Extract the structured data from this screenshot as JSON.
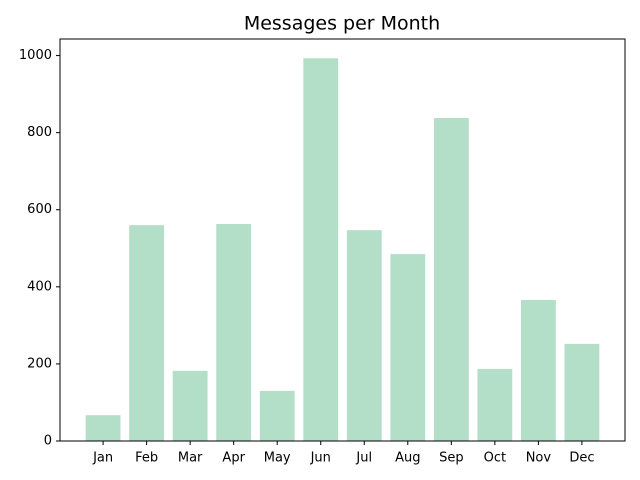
{
  "chart_data": {
    "type": "bar",
    "title": "Messages per Month",
    "categories": [
      "Jan",
      "Feb",
      "Mar",
      "Apr",
      "May",
      "Jun",
      "Jul",
      "Aug",
      "Sep",
      "Oct",
      "Nov",
      "Dec"
    ],
    "values": [
      67,
      560,
      182,
      563,
      130,
      993,
      547,
      485,
      838,
      187,
      366,
      252
    ],
    "color": "#b3dec8",
    "ylim": [
      0,
      1043
    ],
    "yticks": [
      0,
      200,
      400,
      600,
      800,
      1000
    ],
    "grid": false
  }
}
